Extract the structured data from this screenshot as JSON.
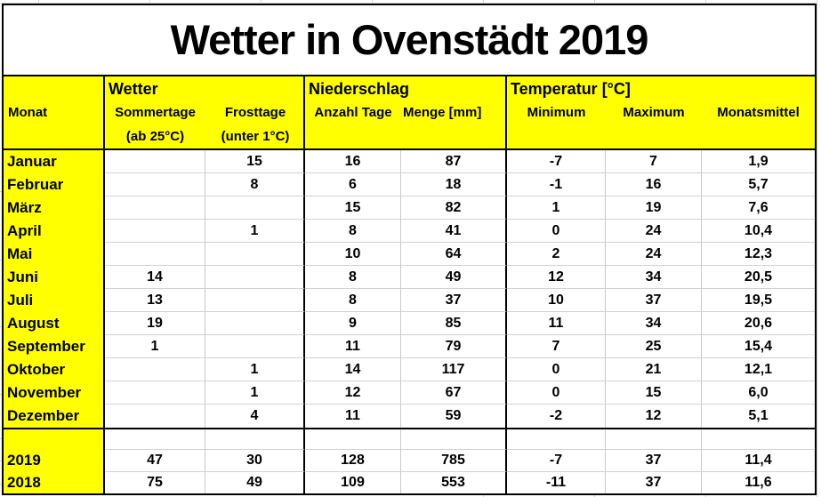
{
  "title": "Wetter in Ovenstädt 2019",
  "table": {
    "header_groups": {
      "wetter": "Wetter",
      "niederschlag": "Niederschlag",
      "temperatur": "Temperatur [°C]"
    },
    "columns": {
      "monat": "Monat",
      "sommertage": "Sommertage",
      "frosttage": "Frosttage",
      "anzahl_tage": "Anzahl Tage",
      "menge": "Menge [mm]",
      "min": "Minimum",
      "max": "Maximum",
      "mittel": "Monatsmittel"
    },
    "subheaders": {
      "sommertage": "(ab 25°C)",
      "frosttage": "(unter 1°C)"
    },
    "rows": [
      {
        "monat": "Januar",
        "sommertage": "",
        "frosttage": "15",
        "anzahl_tage": "16",
        "menge": "87",
        "min": "-7",
        "max": "7",
        "mittel": "1,9"
      },
      {
        "monat": "Februar",
        "sommertage": "",
        "frosttage": "8",
        "anzahl_tage": "6",
        "menge": "18",
        "min": "-1",
        "max": "16",
        "mittel": "5,7"
      },
      {
        "monat": "März",
        "sommertage": "",
        "frosttage": "",
        "anzahl_tage": "15",
        "menge": "82",
        "min": "1",
        "max": "19",
        "mittel": "7,6"
      },
      {
        "monat": "April",
        "sommertage": "",
        "frosttage": "1",
        "anzahl_tage": "8",
        "menge": "41",
        "min": "0",
        "max": "24",
        "mittel": "10,4"
      },
      {
        "monat": "Mai",
        "sommertage": "",
        "frosttage": "",
        "anzahl_tage": "10",
        "menge": "64",
        "min": "2",
        "max": "24",
        "mittel": "12,3"
      },
      {
        "monat": "Juni",
        "sommertage": "14",
        "frosttage": "",
        "anzahl_tage": "8",
        "menge": "49",
        "min": "12",
        "max": "34",
        "mittel": "20,5"
      },
      {
        "monat": "Juli",
        "sommertage": "13",
        "frosttage": "",
        "anzahl_tage": "8",
        "menge": "37",
        "min": "10",
        "max": "37",
        "mittel": "19,5"
      },
      {
        "monat": "August",
        "sommertage": "19",
        "frosttage": "",
        "anzahl_tage": "9",
        "menge": "85",
        "min": "11",
        "max": "34",
        "mittel": "20,6"
      },
      {
        "monat": "September",
        "sommertage": "1",
        "frosttage": "",
        "anzahl_tage": "11",
        "menge": "79",
        "min": "7",
        "max": "25",
        "mittel": "15,4"
      },
      {
        "monat": "Oktober",
        "sommertage": "",
        "frosttage": "1",
        "anzahl_tage": "14",
        "menge": "117",
        "min": "0",
        "max": "21",
        "mittel": "12,1"
      },
      {
        "monat": "November",
        "sommertage": "",
        "frosttage": "1",
        "anzahl_tage": "12",
        "menge": "67",
        "min": "0",
        "max": "15",
        "mittel": "6,0"
      },
      {
        "monat": "Dezember",
        "sommertage": "",
        "frosttage": "4",
        "anzahl_tage": "11",
        "menge": "59",
        "min": "-2",
        "max": "12",
        "mittel": "5,1"
      }
    ],
    "summary_rows": [
      {
        "monat": "2019",
        "sommertage": "47",
        "frosttage": "30",
        "anzahl_tage": "128",
        "menge": "785",
        "min": "-7",
        "max": "37",
        "mittel": "11,4"
      },
      {
        "monat": "2018",
        "sommertage": "75",
        "frosttage": "49",
        "anzahl_tage": "109",
        "menge": "553",
        "min": "-11",
        "max": "37",
        "mittel": "11,6"
      }
    ]
  },
  "colors": {
    "cell_yellow": "#ffff00",
    "gridline_gray": "#d2d2d2",
    "border_black": "#000000"
  }
}
